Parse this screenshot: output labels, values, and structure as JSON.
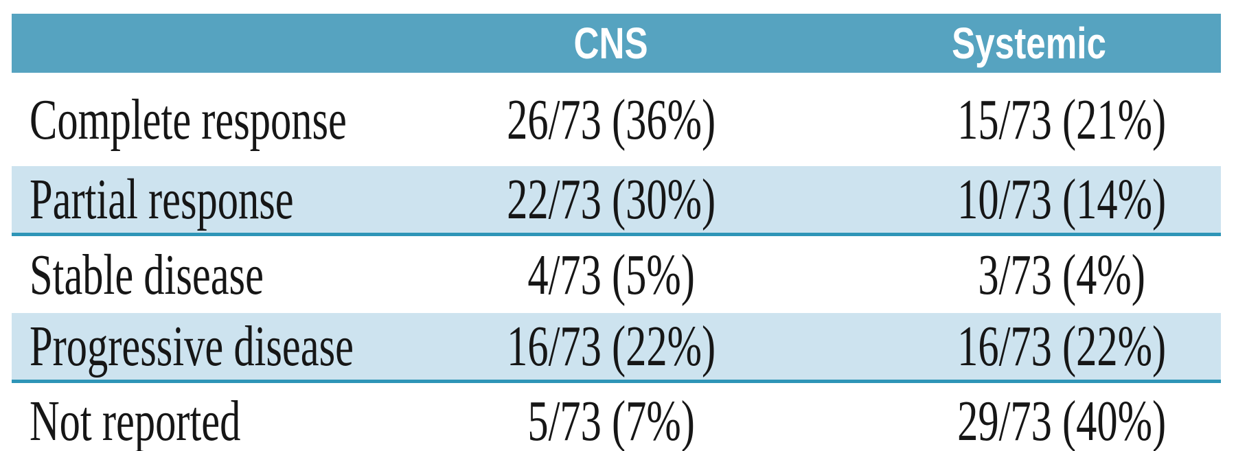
{
  "table": {
    "columns": [
      "",
      "CNS",
      "Systemic"
    ],
    "rows": [
      {
        "label": "Complete response",
        "cns": "26/73 (36%)",
        "systemic": "15/73 (21%)",
        "shaded": false
      },
      {
        "label": "Partial response",
        "cns": "22/73 (30%)",
        "systemic": "10/73 (14%)",
        "shaded": true
      },
      {
        "label": "Stable disease",
        "cns": "4/73 (5%)",
        "systemic": "3/73 (4%)",
        "shaded": false
      },
      {
        "label": "Progressive disease",
        "cns": "16/73 (22%)",
        "systemic": "16/73 (22%)",
        "shaded": true
      },
      {
        "label": "Not reported",
        "cns": "5/73 (7%)",
        "systemic": "29/73 (40%)",
        "shaded": false
      }
    ]
  },
  "chart_data": {
    "type": "table",
    "title": "",
    "columns": [
      "",
      "CNS",
      "Systemic"
    ],
    "rows": [
      [
        "Complete response",
        "26/73 (36%)",
        "15/73 (21%)"
      ],
      [
        "Partial response",
        "22/73 (30%)",
        "10/73 (14%)"
      ],
      [
        "Stable disease",
        "4/73 (5%)",
        "3/73 (4%)"
      ],
      [
        "Progressive disease",
        "16/73 (22%)",
        "16/73 (22%)"
      ],
      [
        "Not reported",
        "5/73 (7%)",
        "29/73 (40%)"
      ]
    ]
  },
  "colors": {
    "header_bg": "#56A3C0",
    "header_text": "#FFFFFF",
    "shaded_row_bg": "#CDE3EF",
    "row_separator": "#2E95B7",
    "bottom_rule": "#2B2B2B",
    "body_text": "#161616"
  }
}
